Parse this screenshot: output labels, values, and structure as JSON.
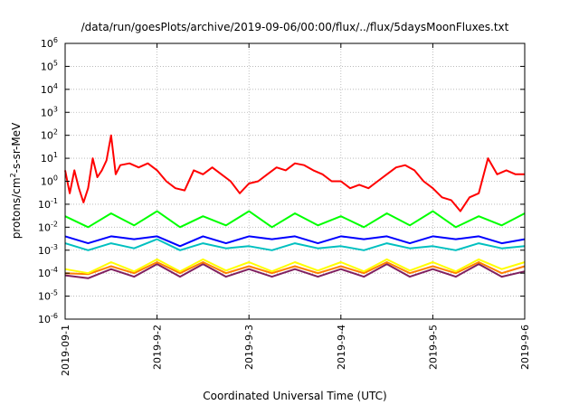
{
  "chart_data": {
    "type": "line",
    "title": "/data/run/goesPlots/archive/2019-09-06/00:00/flux/../flux/5daysMoonFluxes.txt",
    "xlabel": "Coordinated Universal Time (UTC)",
    "ylabel_base": "protons/cm",
    "ylabel_sup": "2",
    "ylabel_rest": "-s-sr-MeV",
    "y_scale": "log",
    "ylim": [
      1e-06,
      1000000.0
    ],
    "xlim_days": [
      "2019-09-01",
      "2019-09-06"
    ],
    "grid": true,
    "legend": "none",
    "x_ticks": [
      "2019-09-1",
      "2019-9-2",
      "2019-9-3",
      "2019-9-4",
      "2019-9-5",
      "2019-9-6"
    ],
    "y_ticks": [
      {
        "base": "10",
        "exp": "6"
      },
      {
        "base": "10",
        "exp": "5"
      },
      {
        "base": "10",
        "exp": "4"
      },
      {
        "base": "10",
        "exp": "3"
      },
      {
        "base": "10",
        "exp": "2"
      },
      {
        "base": "10",
        "exp": "1"
      },
      {
        "base": "10",
        "exp": "0"
      },
      {
        "base": "10",
        "exp": "-1"
      },
      {
        "base": "10",
        "exp": "-2"
      },
      {
        "base": "10",
        "exp": "-3"
      },
      {
        "base": "10",
        "exp": "-4"
      },
      {
        "base": "10",
        "exp": "-5"
      },
      {
        "base": "10",
        "exp": "-6"
      }
    ],
    "series": [
      {
        "color": "#ff0000",
        "x": [
          0.0,
          0.05,
          0.1,
          0.15,
          0.2,
          0.25,
          0.3,
          0.35,
          0.4,
          0.45,
          0.5,
          0.55,
          0.6,
          0.7,
          0.8,
          0.9,
          1.0,
          1.1,
          1.2,
          1.3,
          1.4,
          1.5,
          1.6,
          1.7,
          1.8,
          1.9,
          2.0,
          2.1,
          2.2,
          2.3,
          2.4,
          2.5,
          2.6,
          2.7,
          2.8,
          2.9,
          3.0,
          3.1,
          3.2,
          3.3,
          3.4,
          3.5,
          3.6,
          3.7,
          3.8,
          3.9,
          4.0,
          4.1,
          4.2,
          4.3,
          4.4,
          4.5,
          4.6,
          4.7,
          4.8,
          4.9,
          5.0
        ],
        "y": [
          3,
          0.3,
          3,
          0.5,
          0.12,
          0.5,
          10,
          1.5,
          3,
          8,
          100,
          2,
          5,
          6,
          4,
          6,
          3,
          1,
          0.5,
          0.4,
          3,
          2,
          4,
          2,
          1,
          0.3,
          0.8,
          1,
          2,
          4,
          3,
          6,
          5,
          3,
          2,
          1,
          1,
          0.5,
          0.7,
          0.5,
          1,
          2,
          4,
          5,
          3,
          1,
          0.5,
          0.2,
          0.15,
          0.05,
          0.2,
          0.3,
          10,
          2,
          3,
          2,
          2
        ]
      },
      {
        "color": "#00ff00",
        "x": [
          0.0,
          0.25,
          0.5,
          0.75,
          1.0,
          1.25,
          1.5,
          1.75,
          2.0,
          2.25,
          2.5,
          2.75,
          3.0,
          3.25,
          3.5,
          3.75,
          4.0,
          4.25,
          4.5,
          4.75,
          5.0
        ],
        "y": [
          0.03,
          0.01,
          0.04,
          0.012,
          0.05,
          0.01,
          0.03,
          0.012,
          0.05,
          0.01,
          0.04,
          0.012,
          0.03,
          0.01,
          0.04,
          0.012,
          0.05,
          0.01,
          0.03,
          0.012,
          0.04
        ]
      },
      {
        "color": "#0000ff",
        "x": [
          0.0,
          0.25,
          0.5,
          0.75,
          1.0,
          1.25,
          1.5,
          1.75,
          2.0,
          2.25,
          2.5,
          2.75,
          3.0,
          3.25,
          3.5,
          3.75,
          4.0,
          4.25,
          4.5,
          4.75,
          5.0
        ],
        "y": [
          0.004,
          0.002,
          0.004,
          0.003,
          0.004,
          0.0015,
          0.004,
          0.002,
          0.004,
          0.003,
          0.004,
          0.002,
          0.004,
          0.003,
          0.004,
          0.002,
          0.004,
          0.003,
          0.004,
          0.002,
          0.003
        ]
      },
      {
        "color": "#00c0c0",
        "x": [
          0.0,
          0.25,
          0.5,
          0.75,
          1.0,
          1.25,
          1.5,
          1.75,
          2.0,
          2.25,
          2.5,
          2.75,
          3.0,
          3.25,
          3.5,
          3.75,
          4.0,
          4.25,
          4.5,
          4.75,
          5.0
        ],
        "y": [
          0.002,
          0.001,
          0.002,
          0.0012,
          0.003,
          0.001,
          0.002,
          0.0012,
          0.0015,
          0.001,
          0.002,
          0.0012,
          0.0015,
          0.001,
          0.002,
          0.0012,
          0.0015,
          0.001,
          0.002,
          0.0012,
          0.0015
        ]
      },
      {
        "color": "#ffff00",
        "x": [
          0.0,
          0.25,
          0.5,
          0.75,
          1.0,
          1.25,
          1.5,
          1.75,
          2.0,
          2.25,
          2.5,
          2.75,
          3.0,
          3.25,
          3.5,
          3.75,
          4.0,
          4.25,
          4.5,
          4.75,
          5.0
        ],
        "y": [
          0.00015,
          0.0001,
          0.0003,
          0.00012,
          0.0004,
          0.00012,
          0.0004,
          0.00013,
          0.0003,
          0.00012,
          0.0003,
          0.00013,
          0.0003,
          0.00012,
          0.0004,
          0.00013,
          0.0003,
          0.00012,
          0.0004,
          0.00015,
          0.0003
        ]
      },
      {
        "color": "#ff8000",
        "x": [
          0.0,
          0.25,
          0.5,
          0.75,
          1.0,
          1.25,
          1.5,
          1.75,
          2.0,
          2.25,
          2.5,
          2.75,
          3.0,
          3.25,
          3.5,
          3.75,
          4.0,
          4.25,
          4.5,
          4.75,
          5.0
        ],
        "y": [
          0.0001,
          9e-05,
          0.0002,
          0.0001,
          0.0003,
          0.0001,
          0.0003,
          0.0001,
          0.0002,
          0.0001,
          0.0002,
          0.0001,
          0.0002,
          0.0001,
          0.0003,
          0.0001,
          0.0002,
          0.0001,
          0.0003,
          0.0001,
          0.0002
        ]
      },
      {
        "color": "#802060",
        "x": [
          0.0,
          0.25,
          0.5,
          0.75,
          1.0,
          1.25,
          1.5,
          1.75,
          2.0,
          2.25,
          2.5,
          2.75,
          3.0,
          3.25,
          3.5,
          3.75,
          4.0,
          4.25,
          4.5,
          4.75,
          5.0
        ],
        "y": [
          8e-05,
          6e-05,
          0.00015,
          7e-05,
          0.00025,
          7e-05,
          0.00025,
          7e-05,
          0.00015,
          7e-05,
          0.00015,
          7e-05,
          0.00015,
          7e-05,
          0.00025,
          7e-05,
          0.00015,
          7e-05,
          0.00025,
          7e-05,
          0.00012
        ]
      }
    ]
  }
}
